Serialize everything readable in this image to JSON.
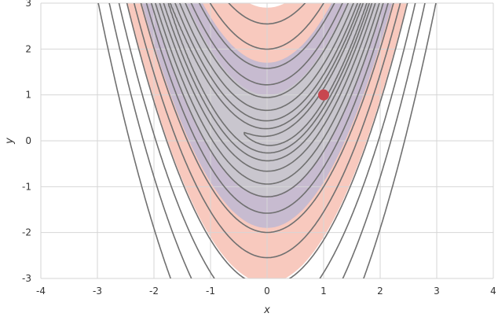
{
  "chart_data": {
    "type": "contour",
    "xlabel": "x",
    "ylabel": "y",
    "xlim": [
      -4,
      4
    ],
    "ylim": [
      -3,
      3
    ],
    "x_ticks": [
      "-4",
      "-3",
      "-2",
      "-1",
      "0",
      "1",
      "2",
      "3",
      "4"
    ],
    "y_ticks": [
      "-3",
      "-2",
      "-1",
      "0",
      "1",
      "2",
      "3"
    ],
    "grid": true,
    "function": "(1 - x)^2 + 100*(y - x^2)^2",
    "contour_levels": [
      2,
      8,
      20,
      45,
      90,
      150,
      250,
      400,
      650,
      1000,
      1500,
      2300,
      3500
    ],
    "shaded_bands": [
      {
        "color": "#f5b7a8",
        "from_a": -3.1,
        "to_a": 2.9
      },
      {
        "color": "#b7b6d6",
        "from_a": -1.9,
        "to_a": 1.7
      },
      {
        "color": "#c9c9cd",
        "from_a": -1.2,
        "to_a": 1.0
      }
    ],
    "points": [
      {
        "x": 1,
        "y": 1
      }
    ],
    "colors": {
      "contour": "#707070",
      "grid": "#d6d6d6",
      "point": "#c8474f"
    }
  }
}
